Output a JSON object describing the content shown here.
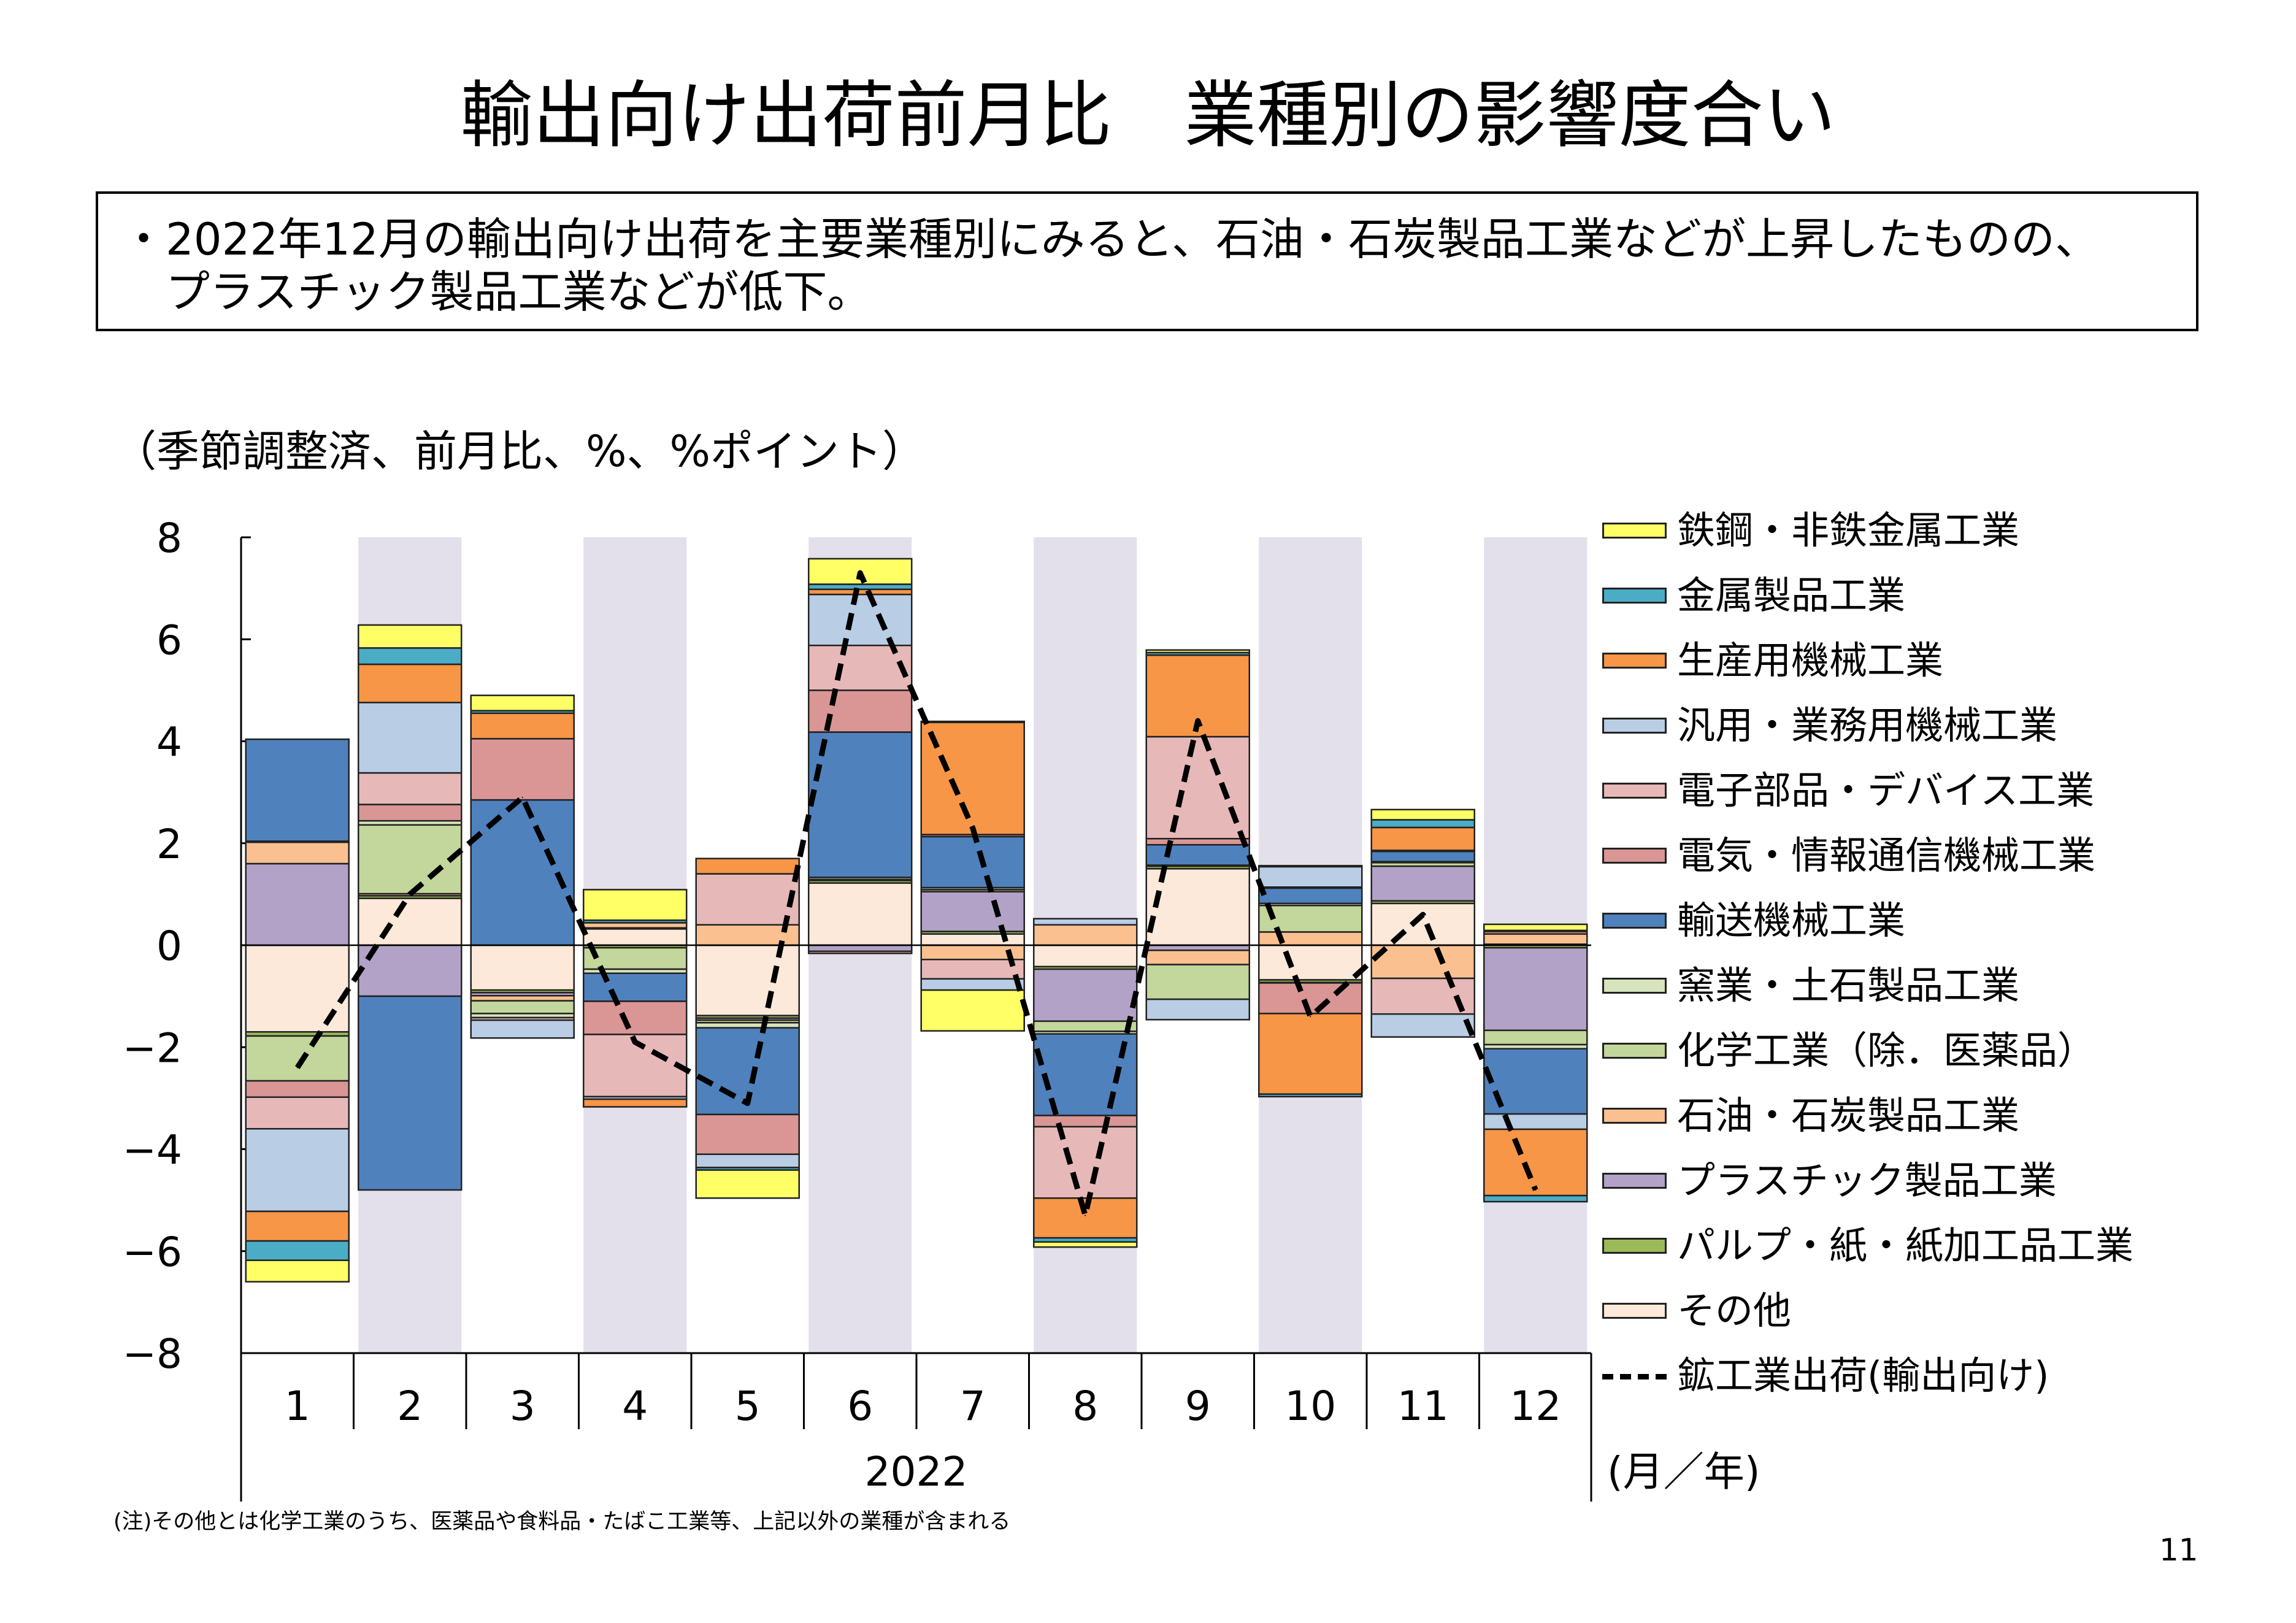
{
  "title": "輸出向け出荷前月比　業種別の影響度合い",
  "summary": {
    "line1": "・2022年12月の輸出向け出荷を主要業種別にみると、石油・石炭製品工業などが上昇したものの、",
    "line2": "　プラスチック製品工業などが低下。"
  },
  "units_label": "（季節調整済、前月比、%、%ポイント）",
  "note": "(注)その他とは化学工業のうち、医薬品や食料品・たばこ工業等、上記以外の業種が含まれる",
  "page_number": "11",
  "chart_data": {
    "type": "bar",
    "stacked": true,
    "categories": [
      "1",
      "2",
      "3",
      "4",
      "5",
      "6",
      "7",
      "8",
      "9",
      "10",
      "11",
      "12"
    ],
    "group_label": "2022",
    "axis_unit_label": "(月／年)",
    "ylim": [
      -8,
      8
    ],
    "yticks": [
      8,
      6,
      4,
      2,
      0,
      -2,
      -4,
      -6,
      -8
    ],
    "shaded_months": [
      2,
      4,
      6,
      8,
      10,
      12
    ],
    "shade_color": "#e3dfeb",
    "series": [
      {
        "name": "その他",
        "color": "#fde9d9",
        "values": [
          -1.7,
          0.92,
          -0.88,
          0.32,
          -1.38,
          1.22,
          0.22,
          -0.42,
          1.5,
          -0.68,
          0.82,
          0.02
        ]
      },
      {
        "name": "パルプ・紙・紙加工品工業",
        "color": "#9bbb59",
        "values": [
          -0.08,
          0.05,
          -0.05,
          -0.05,
          -0.05,
          0.05,
          0.05,
          -0.05,
          0.05,
          -0.05,
          0.05,
          -0.05
        ]
      },
      {
        "name": "プラスチック製品工業",
        "color": "#b3a2c7",
        "values": [
          1.6,
          -1.0,
          -0.06,
          0.02,
          -0.04,
          -0.12,
          0.78,
          -1.02,
          -0.1,
          -0.01,
          0.68,
          -1.62
        ]
      },
      {
        "name": "石油・石炭製品工業",
        "color": "#fac090",
        "values": [
          0.42,
          0.04,
          -0.1,
          0.1,
          0.4,
          -0.04,
          -0.28,
          0.4,
          -0.28,
          0.26,
          -0.65,
          0.2
        ]
      },
      {
        "name": "化学工業（除．医薬品）",
        "color": "#c3d69b",
        "values": [
          -0.88,
          1.35,
          -0.25,
          -0.42,
          -0.05,
          0.02,
          0.04,
          -0.2,
          -0.68,
          0.52,
          0.07,
          -0.28
        ]
      },
      {
        "name": "窯業・土石製品工業",
        "color": "#d7e4bd",
        "values": [
          0.02,
          0.08,
          -0.08,
          -0.08,
          -0.1,
          0.04,
          0.04,
          -0.05,
          0.02,
          0.04,
          0.02,
          -0.08
        ]
      },
      {
        "name": "輸送機械工業",
        "color": "#4f81bd",
        "values": [
          2.0,
          -3.8,
          2.85,
          -0.55,
          -1.7,
          2.85,
          1.0,
          -1.6,
          0.4,
          0.3,
          0.2,
          -1.28
        ]
      },
      {
        "name": "電気・情報通信機械工業",
        "color": "#da9694",
        "values": [
          -0.32,
          0.32,
          1.2,
          -0.65,
          -0.78,
          0.82,
          0.04,
          -0.22,
          0.12,
          -0.6,
          0.02,
          0.05
        ]
      },
      {
        "name": "電子部品・デバイス工業",
        "color": "#e6b9b8",
        "values": [
          -0.62,
          0.62,
          -0.05,
          -1.22,
          1.0,
          0.88,
          -0.38,
          -1.4,
          2.0,
          0.02,
          -0.7,
          0.02
        ]
      },
      {
        "name": "汎用・業務用機械工業",
        "color": "#b9cde5",
        "values": [
          -1.62,
          1.38,
          -0.35,
          -0.05,
          -0.26,
          1.0,
          -0.22,
          0.12,
          -0.4,
          0.4,
          -0.45,
          -0.3
        ]
      },
      {
        "name": "生産用機械工業",
        "color": "#f79646",
        "values": [
          -0.58,
          0.75,
          0.5,
          -0.15,
          0.3,
          0.1,
          2.2,
          -0.78,
          1.6,
          -1.58,
          0.45,
          -1.3
        ]
      },
      {
        "name": "金属製品工業",
        "color": "#4bacc6",
        "values": [
          -0.38,
          0.32,
          0.05,
          0.05,
          -0.05,
          0.1,
          0.02,
          -0.08,
          0.05,
          -0.05,
          0.15,
          -0.12
        ]
      },
      {
        "name": "鉄鋼・非鉄金属工業",
        "color": "#ffff66",
        "values": [
          -0.42,
          0.45,
          0.3,
          0.6,
          -0.55,
          0.5,
          -0.8,
          -0.1,
          0.05,
          0.02,
          0.2,
          0.12
        ]
      }
    ],
    "line_series": {
      "name": "鉱工業出荷(輸出向け)",
      "color": "#000000",
      "values": [
        -2.4,
        1.0,
        2.9,
        -1.9,
        -3.1,
        7.3,
        2.3,
        -5.3,
        4.4,
        -1.4,
        0.6,
        -4.8
      ]
    },
    "legend_order": [
      "鉄鋼・非鉄金属工業",
      "金属製品工業",
      "生産用機械工業",
      "汎用・業務用機械工業",
      "電子部品・デバイス工業",
      "電気・情報通信機械工業",
      "輸送機械工業",
      "窯業・土石製品工業",
      "化学工業（除．医薬品）",
      "石油・石炭製品工業",
      "プラスチック製品工業",
      "パルプ・紙・紙加工品工業",
      "その他",
      "鉱工業出荷(輸出向け)"
    ],
    "legend_placement": "right"
  }
}
